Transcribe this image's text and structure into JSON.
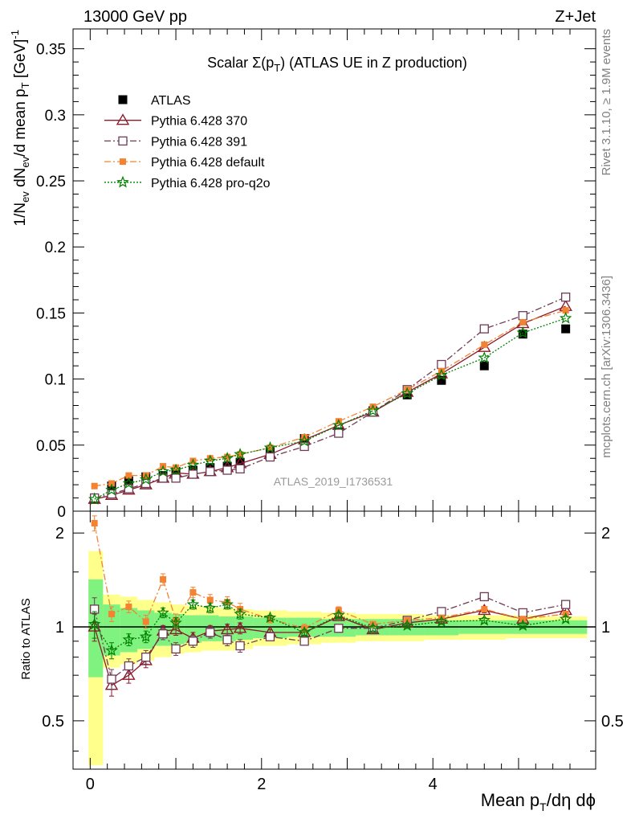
{
  "header": {
    "left": "13000 GeV pp",
    "right": "Z+Jet"
  },
  "side_labels": {
    "rivet": "Rivet 3.1.10, ≥ 1.9M events",
    "mcplots": "mcplots.cern.ch [arXiv:1306.3436]"
  },
  "plot_title": "Scalar Σ(p_T) (ATLAS UE in Z production)",
  "watermark": "ATLAS_2019_I1736531",
  "axes": {
    "xlabel": "Mean p_T/dη dϕ",
    "ylabel_main": "1/N_ev dN_ev/d mean p_T [GeV]^-1",
    "ylabel_ratio": "Ratio to ATLAS"
  },
  "colors": {
    "data": "#000000",
    "p370": "#8b1a2b",
    "p391": "#6e3b55",
    "pdefault": "#f58231",
    "proq2o": "#008000",
    "band_inner": "#7ff27f",
    "band_outer": "#ffff8c"
  },
  "chart_data": [
    {
      "type": "scatter",
      "panel": "main",
      "title": "Scalar Σ(p_T) (ATLAS UE in Z production)",
      "xlabel": "Mean p_T/dη dϕ",
      "ylabel": "1/N_ev dN_ev/d mean p_T [GeV]^-1",
      "xlim": [
        -0.2,
        5.9
      ],
      "ylim": [
        0,
        0.365
      ],
      "x_ticks": [
        0,
        2,
        4
      ],
      "y_ticks": [
        0,
        0.05,
        0.1,
        0.15,
        0.2,
        0.25,
        0.3,
        0.35
      ],
      "y_tick_labels": [
        "0",
        "0.05",
        "0.1",
        "0.15",
        "0.2",
        "0.25",
        "0.3",
        "0.35"
      ],
      "legend_position": "top-left",
      "x": [
        0.05,
        0.25,
        0.45,
        0.65,
        0.85,
        1.0,
        1.2,
        1.4,
        1.6,
        1.75,
        2.1,
        2.5,
        2.9,
        3.3,
        3.7,
        4.1,
        4.6,
        5.05,
        5.55
      ],
      "series": [
        {
          "name": "ATLAS",
          "key": "data",
          "marker": "square-filled",
          "line": "none",
          "values": [
            0.009,
            0.019,
            0.023,
            0.026,
            0.027,
            0.03,
            0.031,
            0.033,
            0.034,
            0.037,
            0.045,
            0.055,
            0.06,
            0.076,
            0.088,
            0.099,
            0.11,
            0.134,
            0.138
          ]
        },
        {
          "name": "Pythia 6.428 370",
          "key": "p370",
          "marker": "triangle-open",
          "line": "solid",
          "values": [
            0.009,
            0.012,
            0.016,
            0.02,
            0.025,
            0.029,
            0.028,
            0.03,
            0.033,
            0.036,
            0.043,
            0.054,
            0.065,
            0.075,
            0.09,
            0.104,
            0.124,
            0.142,
            0.155
          ]
        },
        {
          "name": "Pythia 6.428 391",
          "key": "p391",
          "marker": "square-open",
          "line": "dashdot",
          "values": [
            0.01,
            0.013,
            0.017,
            0.021,
            0.025,
            0.025,
            0.028,
            0.03,
            0.031,
            0.032,
            0.041,
            0.049,
            0.059,
            0.075,
            0.092,
            0.111,
            0.138,
            0.148,
            0.162
          ]
        },
        {
          "name": "Pythia 6.428 default",
          "key": "pdefault",
          "marker": "square-filled-small",
          "line": "dashdot",
          "values": [
            0.019,
            0.021,
            0.027,
            0.027,
            0.034,
            0.033,
            0.038,
            0.04,
            0.041,
            0.043,
            0.048,
            0.056,
            0.068,
            0.079,
            0.092,
            0.106,
            0.126,
            0.143,
            0.152
          ]
        },
        {
          "name": "Pythia 6.428 pro-q2o",
          "key": "proq2o",
          "marker": "star-open",
          "line": "dotted",
          "values": [
            0.009,
            0.016,
            0.021,
            0.024,
            0.03,
            0.031,
            0.035,
            0.038,
            0.04,
            0.043,
            0.048,
            0.053,
            0.065,
            0.076,
            0.089,
            0.103,
            0.116,
            0.135,
            0.146
          ]
        }
      ]
    },
    {
      "type": "line",
      "panel": "ratio",
      "ylabel": "Ratio to ATLAS",
      "xlim": [
        -0.2,
        5.9
      ],
      "ylim": [
        0.35,
        2.35
      ],
      "y_scale": "log",
      "y_ticks": [
        0.5,
        1,
        2
      ],
      "y_tick_labels": [
        "0.5",
        "1",
        "2"
      ],
      "x_tick_labels": [
        "0",
        "2",
        "4"
      ],
      "x": [
        0.05,
        0.25,
        0.45,
        0.65,
        0.85,
        1.0,
        1.2,
        1.4,
        1.6,
        1.75,
        2.1,
        2.5,
        2.9,
        3.3,
        3.7,
        4.1,
        4.6,
        5.05,
        5.55
      ],
      "bin_edges": [
        -0.02,
        0.15,
        0.35,
        0.55,
        0.75,
        0.95,
        1.1,
        1.3,
        1.5,
        1.7,
        1.9,
        2.3,
        2.7,
        3.1,
        3.5,
        3.9,
        4.3,
        4.85,
        5.3,
        5.8
      ],
      "band_inner": {
        "low": [
          0.69,
          0.81,
          0.83,
          0.85,
          0.87,
          0.88,
          0.89,
          0.9,
          0.9,
          0.91,
          0.92,
          0.93,
          0.93,
          0.94,
          0.94,
          0.94,
          0.95,
          0.95,
          0.95
        ],
        "high": [
          1.42,
          1.18,
          1.15,
          1.13,
          1.11,
          1.1,
          1.09,
          1.09,
          1.08,
          1.08,
          1.07,
          1.07,
          1.06,
          1.06,
          1.06,
          1.05,
          1.05,
          1.05,
          1.05
        ]
      },
      "band_outer": {
        "low": [
          0.36,
          0.74,
          0.76,
          0.78,
          0.8,
          0.82,
          0.83,
          0.84,
          0.84,
          0.85,
          0.87,
          0.88,
          0.89,
          0.9,
          0.9,
          0.91,
          0.91,
          0.92,
          0.92
        ],
        "high": [
          1.75,
          1.27,
          1.25,
          1.22,
          1.2,
          1.18,
          1.17,
          1.16,
          1.15,
          1.14,
          1.13,
          1.12,
          1.11,
          1.1,
          1.1,
          1.09,
          1.09,
          1.09,
          1.08
        ]
      },
      "series": [
        {
          "name": "Pythia 6.428 370",
          "key": "p370",
          "marker": "triangle-open",
          "line": "solid",
          "values": [
            1.0,
            0.65,
            0.7,
            0.78,
            0.97,
            0.98,
            0.92,
            0.97,
            0.98,
            0.99,
            0.96,
            0.96,
            1.08,
            0.98,
            1.03,
            1.06,
            1.13,
            1.06,
            1.13
          ],
          "errors": [
            0.1,
            0.05,
            0.04,
            0.04,
            0.04,
            0.04,
            0.04,
            0.04,
            0.04,
            0.04,
            0.02,
            0.02,
            0.02,
            0.02,
            0.02,
            0.02,
            0.02,
            0.02,
            0.02
          ]
        },
        {
          "name": "Pythia 6.428 391",
          "key": "p391",
          "marker": "square-open",
          "line": "dashdot",
          "values": [
            1.14,
            0.68,
            0.75,
            0.8,
            0.95,
            0.85,
            0.9,
            0.96,
            0.91,
            0.87,
            0.93,
            0.9,
            0.99,
            0.99,
            1.05,
            1.12,
            1.25,
            1.11,
            1.18
          ],
          "errors": [
            0.1,
            0.05,
            0.04,
            0.04,
            0.04,
            0.04,
            0.04,
            0.04,
            0.04,
            0.04,
            0.02,
            0.02,
            0.02,
            0.02,
            0.02,
            0.02,
            0.02,
            0.02,
            0.02
          ]
        },
        {
          "name": "Pythia 6.428 default",
          "key": "pdefault",
          "marker": "square-filled-small",
          "line": "dashdot",
          "values": [
            2.15,
            1.1,
            1.16,
            1.04,
            1.42,
            1.05,
            1.29,
            1.22,
            1.2,
            1.14,
            1.06,
            0.99,
            1.13,
            1.02,
            1.05,
            1.07,
            1.14,
            1.06,
            1.1
          ],
          "errors": [
            0.12,
            0.06,
            0.05,
            0.05,
            0.06,
            0.05,
            0.05,
            0.05,
            0.05,
            0.05,
            0.03,
            0.03,
            0.03,
            0.02,
            0.02,
            0.02,
            0.02,
            0.02,
            0.02
          ]
        },
        {
          "name": "Pythia 6.428 pro-q2o",
          "key": "proq2o",
          "marker": "star-open",
          "line": "dotted",
          "values": [
            1.02,
            0.84,
            0.91,
            0.93,
            1.11,
            1.03,
            1.18,
            1.15,
            1.18,
            1.1,
            1.07,
            0.96,
            1.09,
            0.99,
            1.01,
            1.04,
            1.05,
            1.01,
            1.06
          ],
          "errors": [
            0.1,
            0.05,
            0.04,
            0.04,
            0.04,
            0.04,
            0.04,
            0.04,
            0.04,
            0.04,
            0.02,
            0.02,
            0.02,
            0.02,
            0.02,
            0.02,
            0.02,
            0.02,
            0.02
          ]
        }
      ]
    }
  ]
}
